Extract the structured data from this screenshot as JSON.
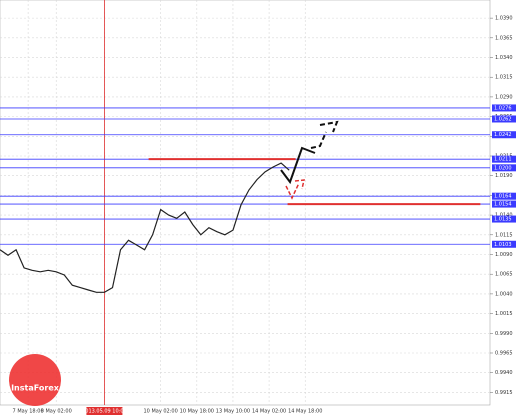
{
  "chart_data": {
    "type": "line",
    "brand": "InstaForex",
    "cursor_label": "2013.05.09 10:00",
    "x": [
      0,
      1,
      2,
      3,
      4,
      5,
      6,
      7,
      8,
      9,
      10,
      11,
      12,
      13,
      14,
      15,
      16,
      17,
      18,
      19,
      20,
      21,
      22,
      23,
      24,
      25,
      26,
      27,
      28,
      29,
      30,
      31,
      32,
      33,
      34,
      35,
      36
    ],
    "series": [
      {
        "color": "#222222",
        "values": [
          1.0096,
          1.0089,
          1.0096,
          1.0073,
          1.007,
          1.0068,
          1.007,
          1.0068,
          1.0064,
          1.0051,
          1.0048,
          1.0045,
          1.0042,
          1.0042,
          1.0048,
          1.0096,
          1.0108,
          1.0102,
          1.0096,
          1.0115,
          1.0147,
          1.014,
          1.0136,
          1.0144,
          1.0128,
          1.0115,
          1.0124,
          1.0119,
          1.0115,
          1.0121,
          1.0153,
          1.0172,
          1.0185,
          1.0195,
          1.0201,
          1.0206,
          1.0197
        ]
      }
    ],
    "xlim": [
      0,
      61
    ],
    "xticks": [
      {
        "value": 3.5,
        "label": "7 May 18:00"
      },
      {
        "value": 7,
        "label": "8 May 02:00"
      },
      {
        "value": 13,
        "label": "9 May 10:00"
      },
      {
        "value": 20,
        "label": "10 May 02:00"
      },
      {
        "value": 24.5,
        "label": "10 May 18:00"
      },
      {
        "value": 29,
        "label": "13 May 10:00"
      },
      {
        "value": 33.5,
        "label": "14 May 02:00"
      },
      {
        "value": 38,
        "label": "14 May 18:00"
      }
    ],
    "cursor_x": 13,
    "ylim": [
      0.9899,
      1.0413
    ],
    "yticks": [
      {
        "value": 0.9915,
        "label": "0.9915"
      },
      {
        "value": 0.994,
        "label": "0.9940"
      },
      {
        "value": 0.9965,
        "label": "0.9965"
      },
      {
        "value": 0.999,
        "label": "0.9990"
      },
      {
        "value": 1.0015,
        "label": "1.0015"
      },
      {
        "value": 1.004,
        "label": "1.0040"
      },
      {
        "value": 1.0065,
        "label": "1.0065"
      },
      {
        "value": 1.009,
        "label": "1.0090"
      },
      {
        "value": 1.0115,
        "label": "1.0115"
      },
      {
        "value": 1.014,
        "label": "1.0140"
      },
      {
        "value": 1.0165,
        "label": "1.0165"
      },
      {
        "value": 1.019,
        "label": "1.0190"
      },
      {
        "value": 1.0215,
        "label": "1.0215"
      },
      {
        "value": 1.024,
        "label": "1.0240"
      },
      {
        "value": 1.0265,
        "label": "1.0265"
      },
      {
        "value": 1.029,
        "label": "1.0290"
      },
      {
        "value": 1.0315,
        "label": "1.0315"
      },
      {
        "value": 1.034,
        "label": "1.0340"
      },
      {
        "value": 1.0365,
        "label": "1.0365"
      },
      {
        "value": 1.039,
        "label": "1.0390"
      }
    ],
    "grid": true,
    "levels": [
      {
        "value": 1.0276,
        "label": "1.0276"
      },
      {
        "value": 1.0262,
        "label": "1.0262"
      },
      {
        "value": 1.0242,
        "label": "1.0242"
      },
      {
        "value": 1.0211,
        "label": "1.0211"
      },
      {
        "value": 1.02,
        "label": "1.0200"
      },
      {
        "value": 1.0164,
        "label": "1.0164"
      },
      {
        "value": 1.0154,
        "label": "1.0154"
      },
      {
        "value": 1.0135,
        "label": "1.0135"
      },
      {
        "value": 1.0103,
        "label": "1.0103"
      }
    ],
    "level_color": "#3a3aff",
    "red_levels": [
      {
        "value": 1.0211,
        "from": 18.5,
        "to": 36.8
      },
      {
        "value": 1.0154,
        "from": 35.8,
        "to": 59.8
      }
    ],
    "red_color": "#e03030"
  }
}
